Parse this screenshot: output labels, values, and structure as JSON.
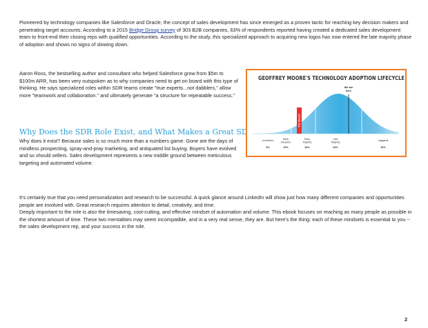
{
  "paragraphs": {
    "p1_before_link": "Pioneered by technology companies like Salesforce and Oracle, the concept of sales development has since emerged as a proven tactic for reaching key decision makers and penetrating target accounts. According to a 2015 ",
    "p1_link": "Bridge Group survey",
    "p1_after_link": " of 303 B2B companies, 63% of respondents reported having created a dedicated sales development team to front-end their closing reps with qualified opportunities. According to the study, this specialized approach to acquiring new logos has now entered the late majority phase of adoption and shows no signs of slowing down.",
    "p2": "Aaron Ross, the bestselling author and consultant who helped Salesforce grow from $5m to $100m ARR, has been very outspoken as to why companies need to get on board with this type of thinking. He says specialized roles within SDR teams create \"true experts...not dabblers,\" allow more \"teamwork and collaboration.\" and ultimately generate \"a structure for repeatable success.\"",
    "p3": "Why does it exist? Because sales is so much more than a numbers game. Gone are the days of mindless prospecting, spray-and-pray marketing, and antiquated list buying. Buyers have evolved and so should sellers. Sales development represents a new middle ground between meticulous targeting and automated volume.",
    "p4_line1": "It's certainly true that you need personalization and research to be successful. A quick glance around LinkedIn will show just how many different companies and opportunities people are involved with. Great research requires attention to detail, creativity, and time.",
    "p4_line2": "Deeply important to the role is also the timesaving, cost-cutting, and effective mindset of automation and volume. This ebook focuses on reaching as many people as possible in the shortest amount of time. These two mentalities may seem incompatible, and in a very real sense, they are. But here's the thing: each of these mindsets is essential to you -- the sales development rep, and your success in the role."
  },
  "heading": "Why Does the SDR Role Exist, and What Makes a Great SDR?",
  "figure": {
    "title": "GEOFFREY MOORE'S TECHNOLOGY ADOPTION LIFECYCLE",
    "marker_label_line1": "We are",
    "marker_label_line2": "here",
    "bar_label": "The Chasm",
    "segments": [
      {
        "label1": "Innovators",
        "label2": "",
        "pct": "3%"
      },
      {
        "label1": "Early",
        "label2": "Adopters",
        "pct": "13%"
      },
      {
        "label1": "Early",
        "label2": "Majority",
        "pct": "34%"
      },
      {
        "label1": "Late",
        "label2": "Majority",
        "pct": "34%"
      },
      {
        "label1": "Laggards",
        "label2": "",
        "pct": "16%"
      }
    ],
    "colors": {
      "border": "#f07b22",
      "curve_light": "#a8d8ef",
      "curve_dark": "#3aaee2",
      "chasm_bar": "#e8312f",
      "heading_blue": "#2a9fd8",
      "link_blue": "#1a3e9c"
    }
  },
  "page_number": "2"
}
